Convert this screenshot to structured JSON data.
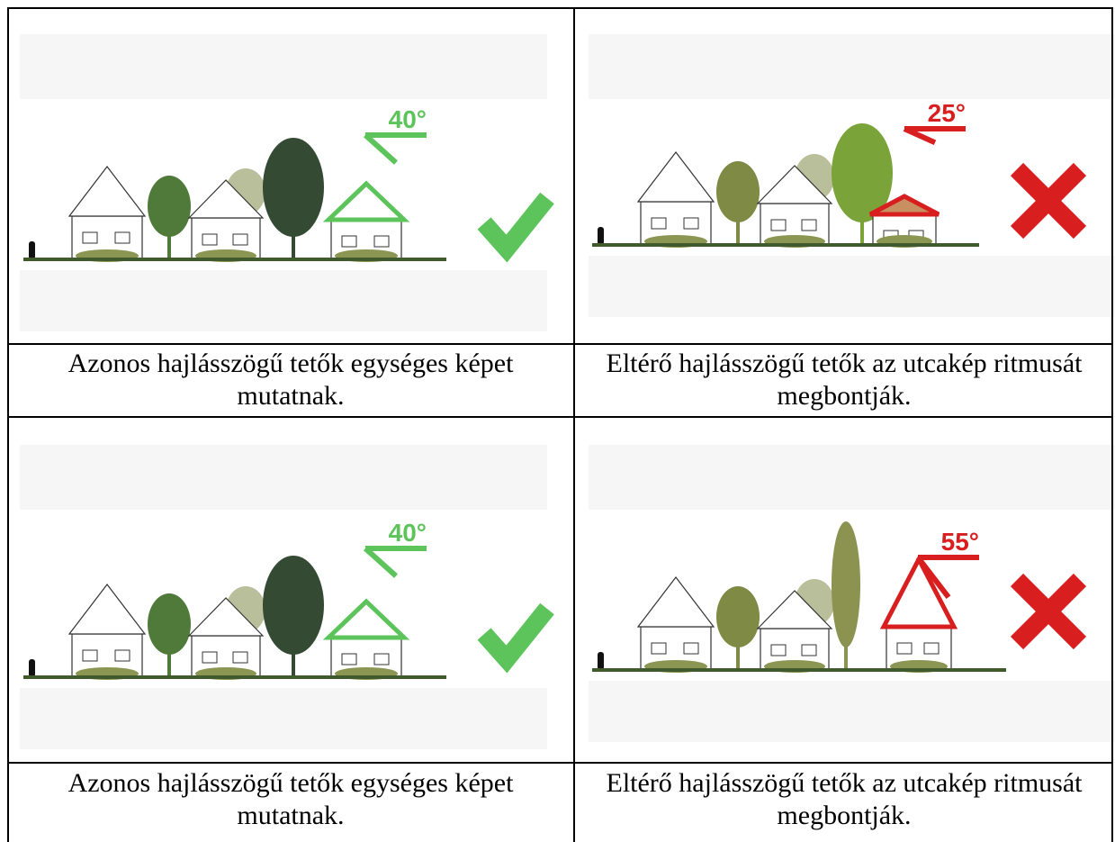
{
  "cells": [
    {
      "angle": "40°",
      "caption": "Azonos hajlásszögű tetők egységes képet mutatnak."
    },
    {
      "angle": "25°",
      "caption": "Eltérő hajlásszögű tetők az utcakép ritmusát megbontják."
    },
    {
      "angle": "40°",
      "caption": "Azonos hajlásszögű tetők egységes képet mutatnak."
    },
    {
      "angle": "55°",
      "caption": "Eltérő hajlásszögű tetők az utcakép ritmusát megbontják."
    }
  ]
}
